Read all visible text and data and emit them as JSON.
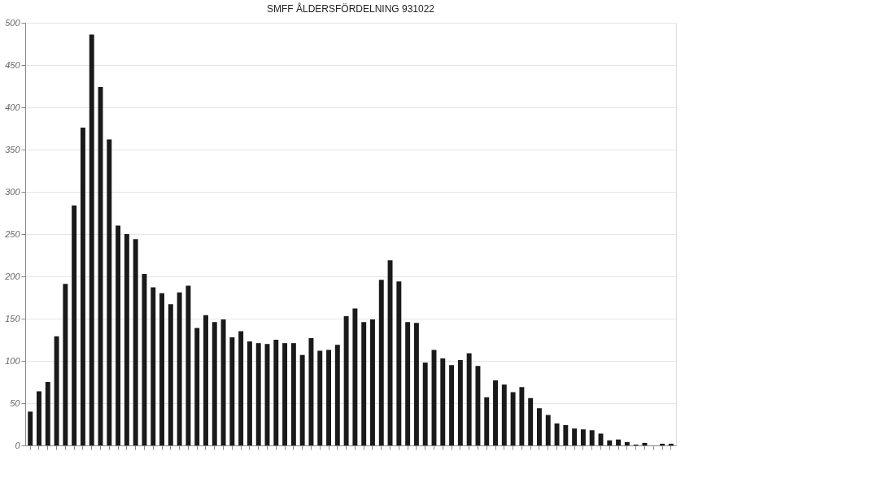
{
  "chart_data": {
    "type": "bar",
    "title": "SMFF ÅLDERSFÖRDELNING 931022",
    "categories": [
      null,
      null,
      null,
      null,
      null,
      null,
      null,
      null,
      null,
      null,
      null,
      null,
      null,
      null,
      null,
      null,
      null,
      null,
      null,
      null,
      null,
      null,
      null,
      null,
      null,
      null,
      null,
      null,
      null,
      null,
      null,
      null,
      null,
      null,
      null,
      null,
      null,
      null,
      null,
      null,
      null,
      null,
      null,
      null,
      null,
      null,
      null,
      null,
      null,
      null,
      null,
      null,
      null,
      null,
      null,
      null,
      null,
      null,
      null,
      null,
      null,
      null,
      null,
      null,
      null,
      null,
      null,
      null,
      null,
      null,
      null,
      null,
      null,
      null
    ],
    "values": [
      40,
      64,
      75,
      129,
      191,
      284,
      376,
      486,
      424,
      362,
      260,
      250,
      244,
      203,
      187,
      180,
      167,
      181,
      189,
      139,
      154,
      146,
      149,
      128,
      135,
      123,
      121,
      120,
      125,
      121,
      121,
      107,
      127,
      112,
      113,
      119,
      153,
      162,
      146,
      149,
      196,
      219,
      194,
      146,
      145,
      98,
      113,
      103,
      95,
      101,
      109,
      94,
      57,
      77,
      72,
      63,
      69,
      56,
      44,
      36,
      26,
      24,
      20,
      19,
      18,
      14,
      6,
      7,
      4,
      1,
      3,
      0,
      2,
      2
    ],
    "color": "#1a1a1a",
    "ylim": [
      0,
      500
    ],
    "yticks": [
      0,
      50,
      100,
      150,
      200,
      250,
      300,
      350,
      400,
      450,
      500
    ],
    "grid": "y"
  }
}
